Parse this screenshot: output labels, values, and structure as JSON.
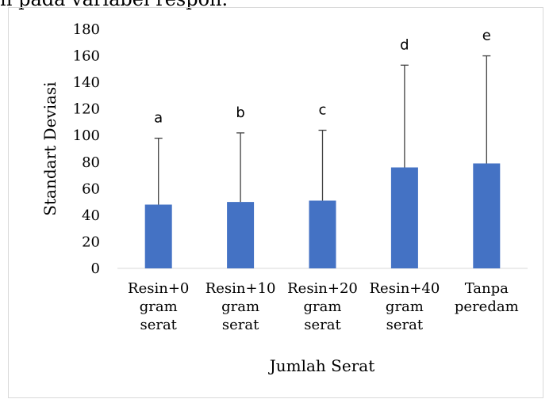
{
  "page_fragment": "h pada variabel respon.",
  "chart_data": {
    "type": "bar",
    "title": "",
    "xlabel": "Jumlah Serat",
    "ylabel": "Standart Deviasi",
    "ylim": [
      0,
      180
    ],
    "yticks": [
      0,
      20,
      40,
      60,
      80,
      100,
      120,
      140,
      160,
      180
    ],
    "categories": [
      [
        "Resin+0",
        "gram",
        "serat"
      ],
      [
        "Resin+10",
        "gram",
        "serat"
      ],
      [
        "Resin+20",
        "gram",
        "serat"
      ],
      [
        "Resin+40",
        "gram",
        "serat"
      ],
      [
        "Tanpa",
        "peredam"
      ]
    ],
    "values": [
      48,
      50,
      51,
      76,
      79
    ],
    "error_upper": [
      98,
      102,
      104,
      153,
      160
    ],
    "significance_letters": [
      "a",
      "b",
      "c",
      "d",
      "e"
    ],
    "grid": false,
    "legend": "none",
    "bar_color": "#4472c4",
    "error_bar_color": "#404040"
  }
}
